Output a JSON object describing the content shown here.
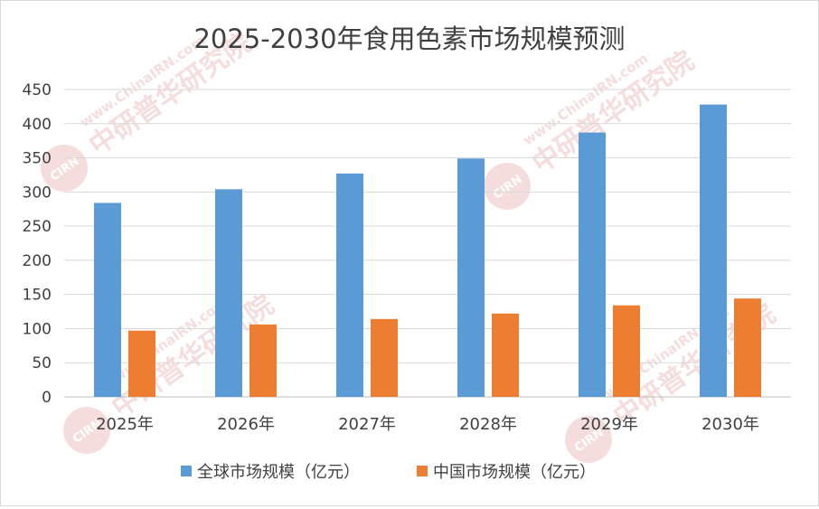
{
  "chart_data": {
    "type": "bar",
    "title": "2025-2030年食用色素市场规模预测",
    "categories": [
      "2025年",
      "2026年",
      "2027年",
      "2028年",
      "2029年",
      "2030年"
    ],
    "series": [
      {
        "name": "全球市场规模（亿元）",
        "color": "#5b9bd5",
        "values": [
          284,
          304,
          327,
          349,
          387,
          428
        ]
      },
      {
        "name": "中国市场规模（亿元）",
        "color": "#ed7d31",
        "values": [
          97,
          106,
          114,
          122,
          134,
          144
        ]
      }
    ],
    "ylim": [
      0,
      450
    ],
    "yticks": [
      "0",
      "50",
      "100",
      "150",
      "200",
      "250",
      "300",
      "350",
      "400",
      "450"
    ],
    "grid": true,
    "legend_position": "bottom",
    "xlabel": "",
    "ylabel": ""
  },
  "watermark": {
    "brand": "中研普华研究院",
    "url": "www.ChinaIRN.com",
    "logo": "CIRN"
  }
}
